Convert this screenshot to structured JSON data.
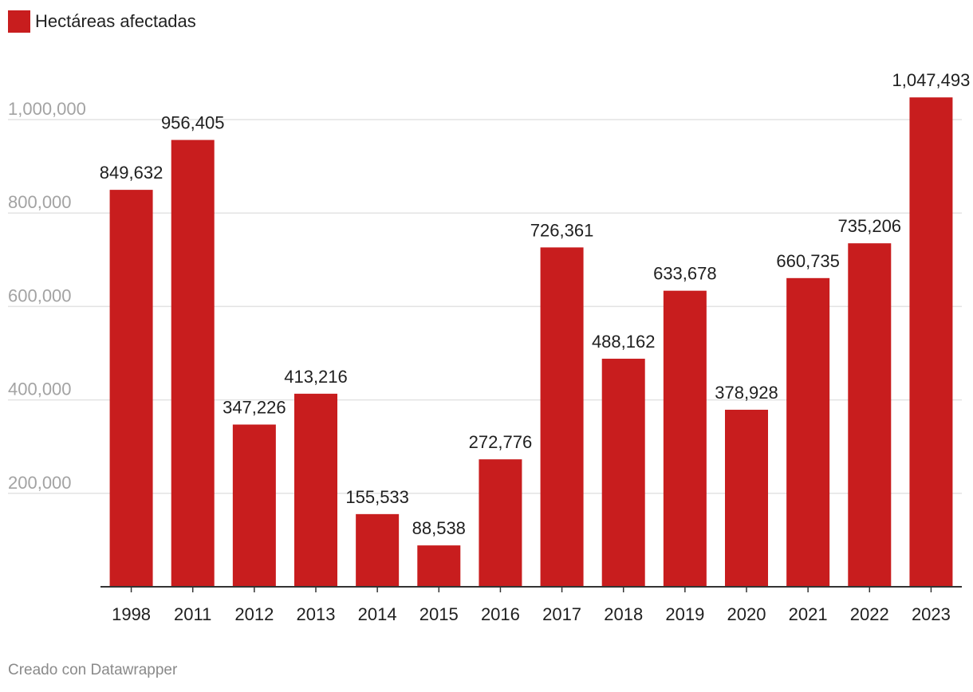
{
  "legend": {
    "label": "Hectáreas afectadas",
    "color": "#c81d1e"
  },
  "footer": {
    "credit": "Creado con Datawrapper"
  },
  "chart_data": {
    "type": "bar",
    "title": "",
    "xlabel": "",
    "ylabel": "",
    "categories": [
      "1998",
      "2011",
      "2012",
      "2013",
      "2014",
      "2015",
      "2016",
      "2017",
      "2018",
      "2019",
      "2020",
      "2021",
      "2022",
      "2023"
    ],
    "series": [
      {
        "name": "Hectáreas afectadas",
        "values": [
          849632,
          956405,
          347226,
          413216,
          155533,
          88538,
          272776,
          726361,
          488162,
          633678,
          378928,
          660735,
          735206,
          1047493
        ],
        "labels": [
          "849,632",
          "956,405",
          "347,226",
          "413,216",
          "155,533",
          "88,538",
          "272,776",
          "726,361",
          "488,162",
          "633,678",
          "378,928",
          "660,735",
          "735,206",
          "1,047,493"
        ]
      }
    ],
    "yticks": [
      200000,
      400000,
      600000,
      800000,
      1000000
    ],
    "ytick_labels": [
      "200,000",
      "400,000",
      "600,000",
      "800,000",
      "1,000,000"
    ],
    "ylim": [
      0,
      1000000
    ],
    "grid": true,
    "bar_color": "#c81d1e",
    "legend_position": "top-left"
  }
}
